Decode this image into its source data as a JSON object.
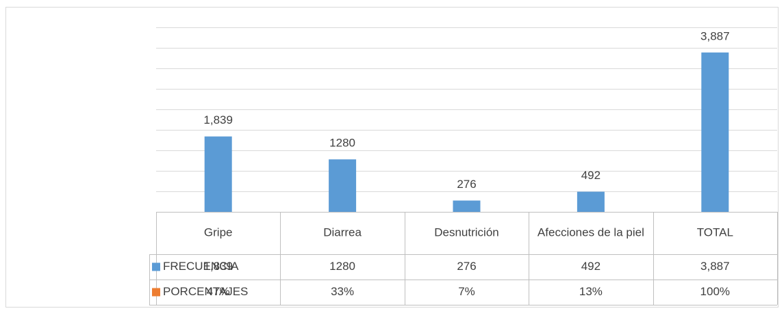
{
  "chart_data": {
    "type": "bar",
    "categories": [
      "Gripe",
      "Diarrea",
      "Desnutrición",
      "Afecciones de la piel",
      "TOTAL"
    ],
    "series": [
      {
        "name": "FRECUENCIA",
        "color": "#5b9bd5",
        "values": [
          1839,
          1280,
          276,
          492,
          3887
        ],
        "value_labels": [
          "1,839",
          "1280",
          "276",
          "492",
          "3,887"
        ]
      },
      {
        "name": "PORCENTAJES",
        "color": "#ed7d31",
        "values": [
          47,
          33,
          7,
          13,
          100
        ],
        "value_labels": [
          "47%",
          "33%",
          "7%",
          "13%",
          "100%"
        ]
      }
    ],
    "ylim": [
      0,
      4500
    ],
    "yticks": [
      0,
      500,
      1000,
      1500,
      2000,
      2500,
      3000,
      3500,
      4000,
      4500
    ],
    "grid": true,
    "data_table": true
  }
}
